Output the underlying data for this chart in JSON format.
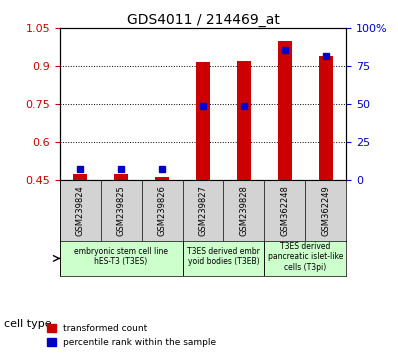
{
  "title": "GDS4011 / 214469_at",
  "samples": [
    "GSM239824",
    "GSM239825",
    "GSM239826",
    "GSM239827",
    "GSM239828",
    "GSM362248",
    "GSM362249"
  ],
  "red_values": [
    0.475,
    0.473,
    0.463,
    0.917,
    0.92,
    1.0,
    0.94
  ],
  "blue_values": [
    0.073,
    0.073,
    0.073,
    0.49,
    0.49,
    0.855,
    0.82
  ],
  "ylim_left": [
    0.45,
    1.05
  ],
  "ylim_right": [
    0,
    100
  ],
  "yticks_left": [
    0.45,
    0.6,
    0.75,
    0.9,
    1.05
  ],
  "yticks_right": [
    0,
    25,
    50,
    75,
    100
  ],
  "ytick_labels_left": [
    "0.45",
    "0.6",
    "0.75",
    "0.9",
    "1.05"
  ],
  "ytick_labels_right": [
    "0",
    "25",
    "50",
    "75",
    "100%"
  ],
  "bar_width": 0.35,
  "bar_color_red": "#cc0000",
  "bar_color_blue": "#0000cc",
  "background_color": "#ffffff",
  "grid_color": "#000000",
  "cell_types": [
    {
      "label": "embryonic stem cell line\nhES-T3 (T3ES)",
      "samples": [
        0,
        1,
        2
      ],
      "color": "#ccffcc"
    },
    {
      "label": "T3ES derived embr\nyoid bodies (T3EB)",
      "samples": [
        3,
        4
      ],
      "color": "#ccffcc"
    },
    {
      "label": "T3ES derived\npancreatic islet-like\ncells (T3pi)",
      "samples": [
        5,
        6
      ],
      "color": "#ccffcc"
    }
  ],
  "cell_type_label": "cell type",
  "legend_red": "transformed count",
  "legend_blue": "percentile rank within the sample"
}
